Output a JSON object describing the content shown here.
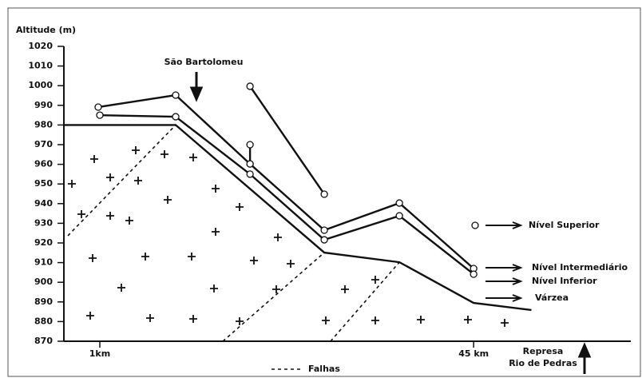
{
  "chart_data": {
    "type": "line",
    "y_label": "Altitude (m)",
    "ylim": [
      870,
      1020
    ],
    "yticks": [
      870,
      880,
      890,
      900,
      910,
      920,
      930,
      940,
      950,
      960,
      970,
      980,
      990,
      1000,
      1010,
      1020
    ],
    "xlim": [
      -3.23,
      63.5
    ],
    "xticks": [
      {
        "value": 1,
        "label": "1km"
      },
      {
        "value": 45,
        "label": "45 km"
      }
    ],
    "series": [
      {
        "name": "Nível Superior",
        "color": "#111",
        "markers": true,
        "x": [
          18.68,
          27.42,
          null,
          18.68,
          18.68
        ],
        "values": [
          999.7,
          944.8,
          null,
          970,
          960.2
        ]
      },
      {
        "name": "Nível Intermediário",
        "color": "#111",
        "markers": true,
        "x": [
          0.81,
          9.93,
          18.68,
          27.42,
          36.26,
          45
        ],
        "values": [
          989.1,
          995.2,
          960.2,
          926.5,
          940.3,
          907
        ]
      },
      {
        "name": "Nível Inferior",
        "color": "#111",
        "markers": true,
        "x": [
          1,
          9.93,
          18.68,
          27.42,
          36.26,
          45
        ],
        "values": [
          985,
          984.2,
          955,
          921.6,
          933.8,
          904.1
        ]
      },
      {
        "name": "Várzea",
        "color": "#111",
        "markers": false,
        "x": [
          -3.23,
          9.93,
          27.42,
          36.26,
          45,
          51.8
        ],
        "values": [
          980,
          980,
          915.1,
          910.2,
          889.5,
          885.9
        ]
      },
      {
        "name": "Falhas",
        "color": "#111",
        "dashed": true,
        "x": [
          -2.76,
          9.93,
          null,
          15.48,
          27.42,
          null,
          28.16,
          36.26
        ],
        "values": [
          923.7,
          980,
          null,
          870,
          915.1,
          null,
          870,
          910.2
        ]
      }
    ],
    "annotations": [
      "São Bartolomeu",
      "Represa",
      "Rio de Pedras"
    ]
  }
}
